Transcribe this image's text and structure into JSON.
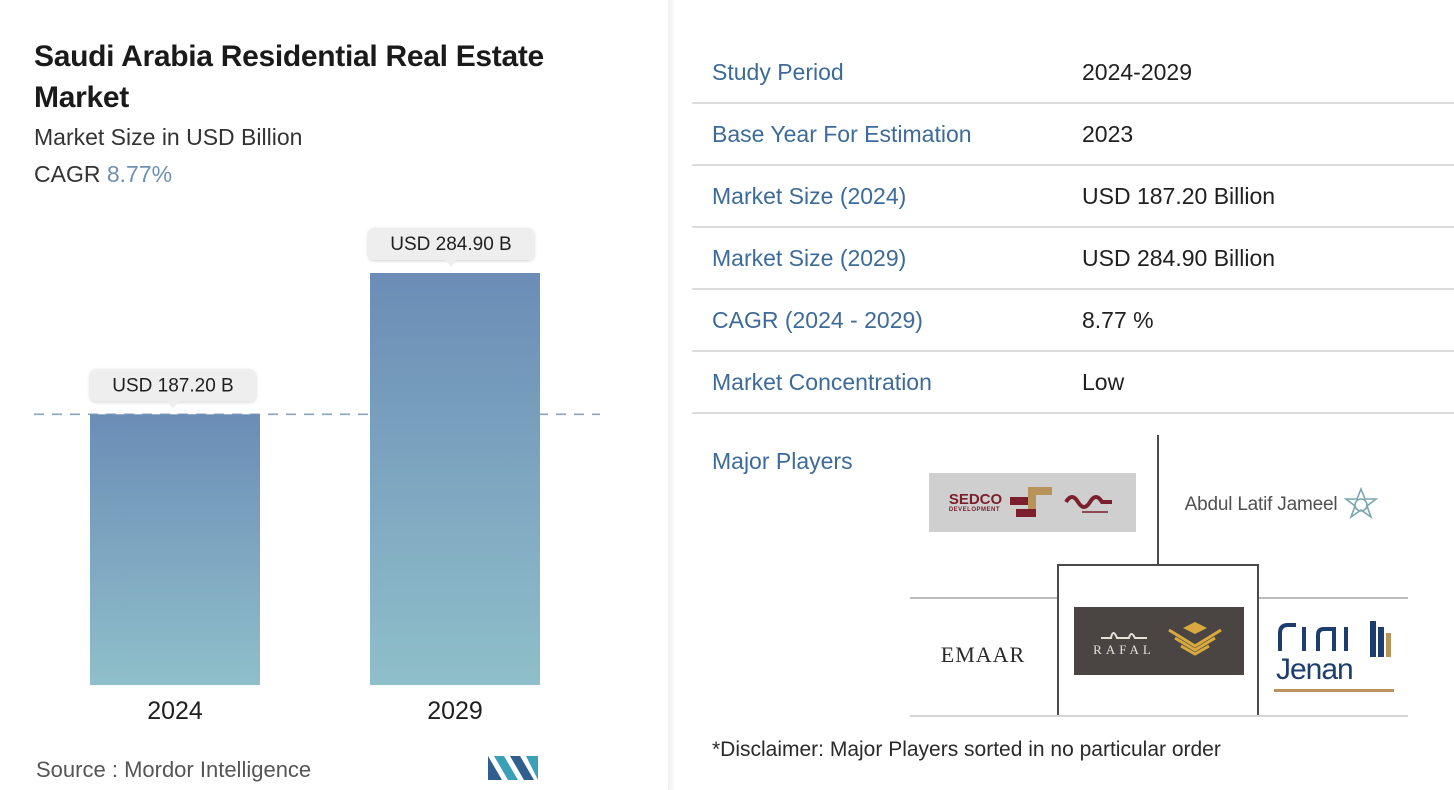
{
  "header": {
    "title": "Saudi Arabia Residential Real Estate Market",
    "subtitle": "Market Size in USD Billion",
    "cagr_label": "CAGR",
    "cagr_value": "8.77%"
  },
  "chart_data": {
    "type": "bar",
    "categories": [
      "2024",
      "2029"
    ],
    "values": [
      187.2,
      284.9
    ],
    "data_labels": [
      "USD 187.20 B",
      "USD 284.90 B"
    ],
    "title": "Saudi Arabia Residential Real Estate Market",
    "ylabel": "Market Size in USD Billion",
    "ylim": [
      0,
      284.9
    ],
    "grid": false,
    "reference_line": 187.2,
    "colors": {
      "bar_top": "#6b8db6",
      "bar_bottom": "#8fbfca",
      "dashed_line": "#8aa3bf",
      "label_bg": "#eeeeee"
    }
  },
  "source": {
    "label": "Source :",
    "name": "Mordor Intelligence"
  },
  "summary_table": [
    {
      "label": "Study Period",
      "value": "2024-2029"
    },
    {
      "label": "Base Year For Estimation",
      "value": "2023"
    },
    {
      "label": "Market Size (2024)",
      "value": "USD 187.20 Billion"
    },
    {
      "label": "Market Size (2029)",
      "value": "USD 284.90 Billion"
    },
    {
      "label": "CAGR (2024 - 2029)",
      "value": "8.77 %"
    },
    {
      "label": "Market Concentration",
      "value": "Low"
    }
  ],
  "major_players": {
    "label": "Major Players",
    "logos": {
      "sedco": "SEDCO",
      "sedco_sub": "DEVELOPMENT",
      "alj": "Abdul Latif Jameel",
      "emaar": "EMAAR",
      "rafal": "RAFAL",
      "jenan": "Jenan"
    }
  },
  "disclaimer": "*Disclaimer: Major Players sorted in no particular order",
  "colors": {
    "accent": "#3d6b99",
    "cagr": "#6f8fb3"
  }
}
